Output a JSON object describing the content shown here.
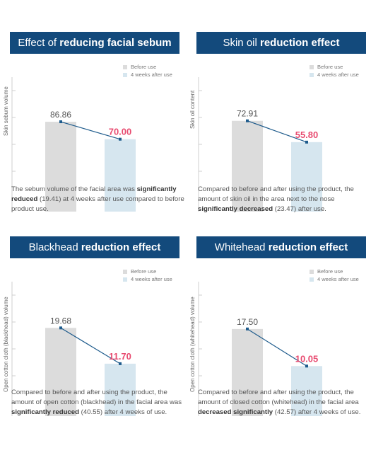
{
  "colors": {
    "title_bg": "#134a7c",
    "before_bar": "#dcdcdc",
    "after_bar": "#d6e6ef",
    "highlight": "#e84b70",
    "line": "#1e5b8c"
  },
  "legend": {
    "before": "Before use",
    "after": "4 weeks after use"
  },
  "panels": [
    {
      "title_plain": "Effect of ",
      "title_bold": "reducing facial sebum",
      "desc_parts": [
        {
          "t": "The sebum volume of the facial area was ",
          "b": false
        },
        {
          "t": "significantly reduced",
          "b": true
        },
        {
          "t": " (19.41) at 4 weeks after use compared to before product use.",
          "b": false
        }
      ]
    },
    {
      "title_plain": "Skin oil ",
      "title_bold": "reduction effect",
      "desc_parts": [
        {
          "t": "Compared to before and after using the product, the amount of skin oil in the area next to the nose ",
          "b": false
        },
        {
          "t": "significantly decreased",
          "b": true
        },
        {
          "t": " (23.47) after use.",
          "b": false
        }
      ]
    },
    {
      "title_plain": "Blackhead ",
      "title_bold": "reduction effect",
      "desc_parts": [
        {
          "t": "Compared to before and after using the product, the amount of open cotton (blackhead) in the facial area was ",
          "b": false
        },
        {
          "t": "significantly reduced",
          "b": true
        },
        {
          "t": " (40.55) after 4 weeks of use.",
          "b": false
        }
      ]
    },
    {
      "title_plain": "Whitehead ",
      "title_bold": "reduction effect",
      "desc_parts": [
        {
          "t": "Compared to before and after using the product, the amount of closed cotton (whitehead) in the facial area ",
          "b": false
        },
        {
          "t": "decreased significantly",
          "b": true
        },
        {
          "t": " (42.57) after 4 weeks of use.",
          "b": false
        }
      ]
    }
  ],
  "chart_data": [
    {
      "type": "bar",
      "title": "Effect of reducing facial sebum",
      "ylabel": "Skin sebum volume",
      "categories": [
        "Before use",
        "4 weeks after use"
      ],
      "values": [
        86.86,
        70.0
      ],
      "value_labels": [
        "86.86",
        "70.00"
      ],
      "ylim": [
        0,
        130
      ]
    },
    {
      "type": "bar",
      "title": "Skin oil reduction effect",
      "ylabel": "Skin oil content",
      "categories": [
        "Before use",
        "4 weeks after use"
      ],
      "values": [
        72.91,
        55.8
      ],
      "value_labels": [
        "72.91",
        "55.80"
      ],
      "ylim": [
        0,
        108
      ]
    },
    {
      "type": "bar",
      "title": "Blackhead reduction effect",
      "ylabel": "Open cotton cloth (blackhead) volume",
      "categories": [
        "Before use",
        "4 weeks after use"
      ],
      "values": [
        19.68,
        11.7
      ],
      "value_labels": [
        "19.68",
        "11.70"
      ],
      "ylim": [
        0,
        30
      ]
    },
    {
      "type": "bar",
      "title": "Whitehead reduction effect",
      "ylabel": "Open cotton cloth (whitehead) volume",
      "categories": [
        "Before use",
        "4 weeks after use"
      ],
      "values": [
        17.5,
        10.05
      ],
      "value_labels": [
        "17.50",
        "10.05"
      ],
      "ylim": [
        0,
        27
      ]
    }
  ]
}
